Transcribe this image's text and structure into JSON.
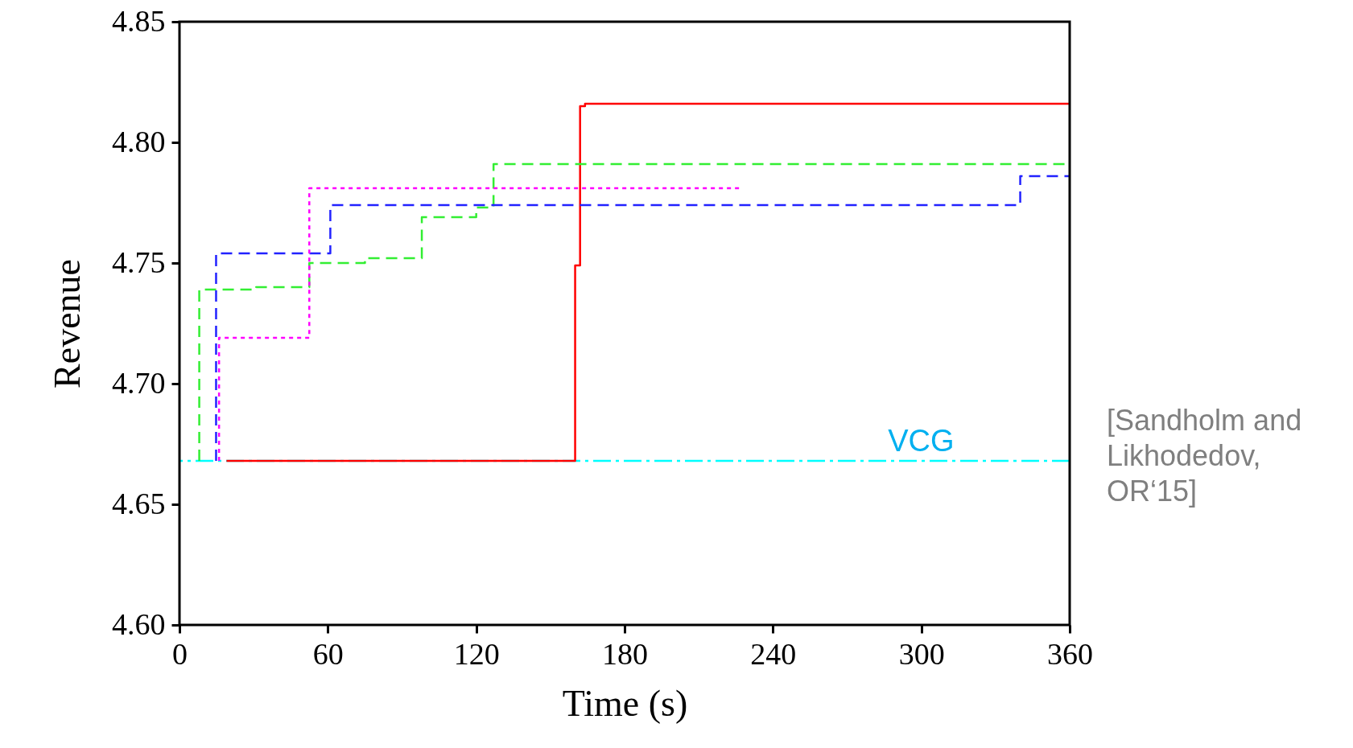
{
  "chart_data": {
    "type": "step",
    "xlabel": "Time (s)",
    "ylabel": "Revenue",
    "xlim": [
      0,
      360
    ],
    "xticks": [
      0,
      60,
      120,
      180,
      240,
      300,
      360
    ],
    "ylim": [
      4.6,
      4.85
    ],
    "yticks": [
      {
        "value": 4.6,
        "label": "4.60"
      },
      {
        "value": 4.65,
        "label": "4.65"
      },
      {
        "value": 4.7,
        "label": "4.70"
      },
      {
        "value": 4.75,
        "label": "4.75"
      },
      {
        "value": 4.8,
        "label": "4.80"
      },
      {
        "value": 4.85,
        "label": "4.85"
      }
    ],
    "grid": false,
    "series": [
      {
        "color": "#ff0000",
        "line_style": "solid",
        "x": [
          19,
          160,
          162,
          164,
          360
        ],
        "values": [
          4.668,
          4.749,
          4.815,
          4.816,
          4.816
        ]
      },
      {
        "color": "#33ee33",
        "line_style": "dashed",
        "x": [
          8,
          8,
          31,
          52.5,
          75,
          98,
          120,
          127,
          360
        ],
        "values": [
          4.668,
          4.739,
          4.74,
          4.75,
          4.752,
          4.769,
          4.773,
          4.791,
          4.791
        ]
      },
      {
        "color": "#2222ff",
        "line_style": "dashed",
        "x": [
          14.8,
          14.8,
          61,
          340,
          360
        ],
        "values": [
          4.668,
          4.754,
          4.774,
          4.786,
          4.786
        ]
      },
      {
        "color": "#ff00ff",
        "line_style": "dotted",
        "x": [
          16,
          16,
          52.5,
          227
        ],
        "values": [
          4.668,
          4.719,
          4.781,
          4.781
        ]
      }
    ],
    "ref_lines": [
      {
        "axis": "y",
        "value": 4.668,
        "label": "VCG",
        "color": "#00ffff",
        "line_style": "dashdot"
      }
    ],
    "annotations": [
      "[Sandholm and Likhodedov, OR‘15]"
    ]
  }
}
